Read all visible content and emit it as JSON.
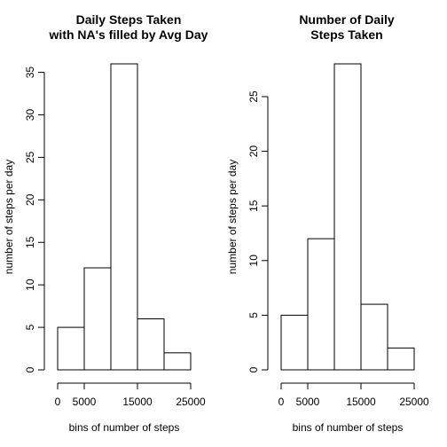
{
  "chart_data": [
    {
      "type": "bar",
      "title": [
        "Daily Steps Taken",
        "with NA's filled by Avg Day"
      ],
      "xlabel": "bins of number of steps",
      "ylabel": "number of steps per day",
      "bins": [
        [
          0,
          5000
        ],
        [
          5000,
          10000
        ],
        [
          10000,
          15000
        ],
        [
          15000,
          20000
        ],
        [
          20000,
          25000
        ]
      ],
      "values": [
        5,
        12,
        36,
        6,
        2
      ],
      "xlim": [
        0,
        25000
      ],
      "ylim": [
        0,
        36
      ],
      "xticks": [
        0,
        5000,
        15000,
        25000
      ],
      "xtick_labels": [
        "0",
        "5000",
        "15000",
        "25000"
      ],
      "yticks": [
        0,
        5,
        10,
        15,
        20,
        25,
        30,
        35
      ],
      "ytick_labels": [
        "0",
        "5",
        "10",
        "15",
        "20",
        "25",
        "30",
        "35"
      ],
      "grid": false,
      "bar_fill": "#ffffff",
      "bar_stroke": "#000000"
    },
    {
      "type": "bar",
      "title": [
        "Number of Daily",
        "Steps Taken"
      ],
      "xlabel": "bins of number of steps",
      "ylabel": "number of steps per day",
      "bins": [
        [
          0,
          5000
        ],
        [
          5000,
          10000
        ],
        [
          10000,
          15000
        ],
        [
          15000,
          20000
        ],
        [
          20000,
          25000
        ]
      ],
      "values": [
        5,
        12,
        28,
        6,
        2
      ],
      "xlim": [
        0,
        25000
      ],
      "ylim": [
        0,
        28
      ],
      "xticks": [
        0,
        5000,
        15000,
        25000
      ],
      "xtick_labels": [
        "0",
        "5000",
        "15000",
        "25000"
      ],
      "yticks": [
        0,
        5,
        10,
        15,
        20,
        25
      ],
      "ytick_labels": [
        "0",
        "5",
        "10",
        "15",
        "20",
        "25"
      ],
      "grid": false,
      "bar_fill": "#ffffff",
      "bar_stroke": "#000000"
    }
  ]
}
